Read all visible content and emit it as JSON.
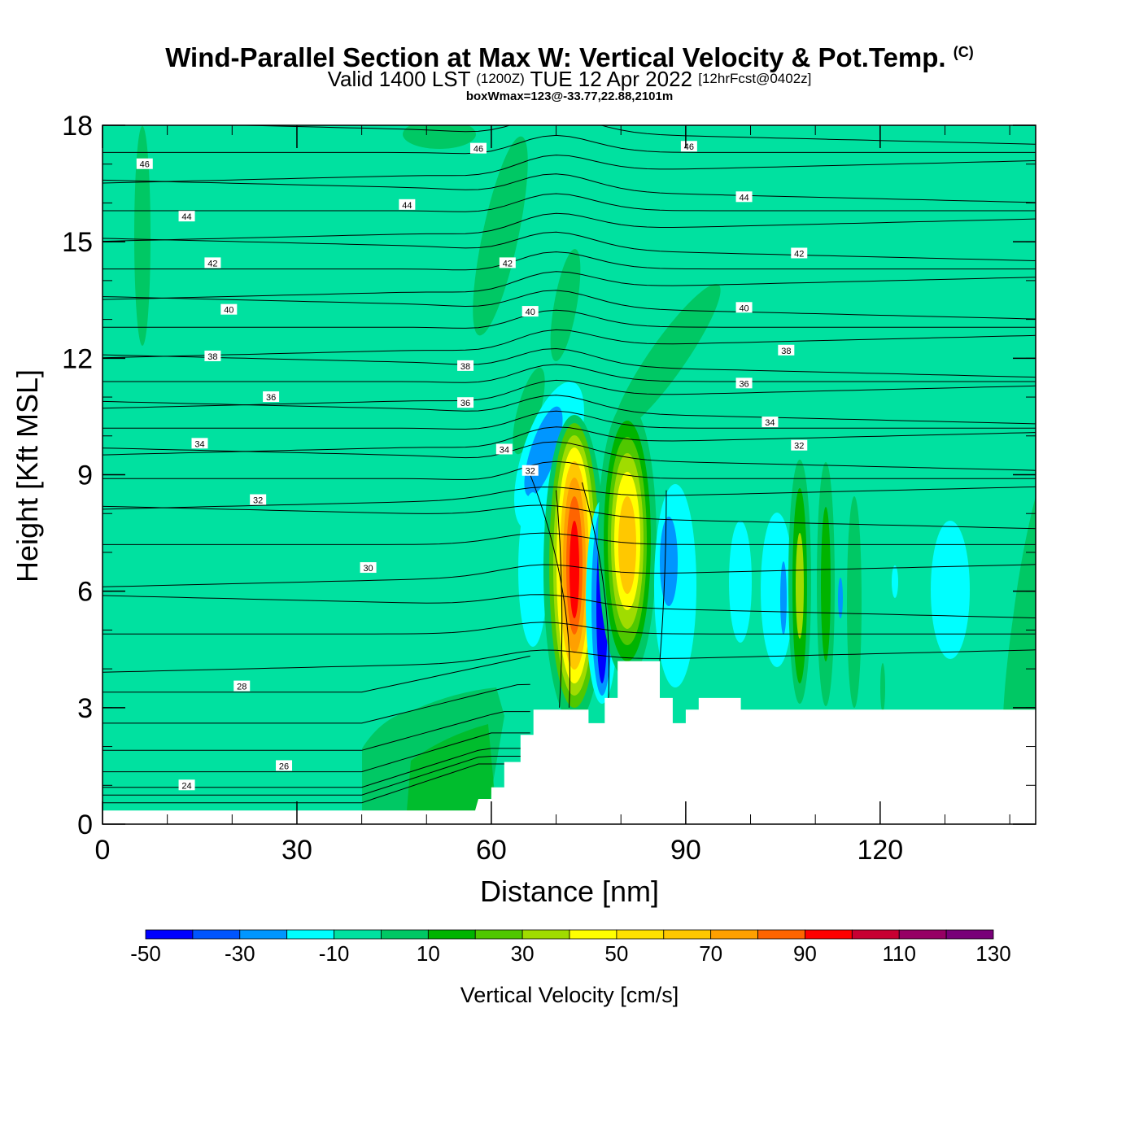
{
  "header": {
    "title": "Wind-Parallel Section at Max W: Vertical Velocity & Pot.Temp.",
    "copyright": "(C)",
    "valid_prefix": "Valid 1400 LST",
    "valid_utc": "(1200Z)",
    "valid_date": "TUE 12 Apr 2022",
    "forecast": "[12hrFcst@0402z]",
    "box_info": "boxWmax=123@-33.77,22.88,2101m"
  },
  "chart_data": {
    "type": "heatmap",
    "xlabel": "Distance [nm]",
    "ylabel": "Height [Kft MSL]",
    "xlim": [
      0,
      144
    ],
    "ylim": [
      0,
      18
    ],
    "x_ticks": [
      0,
      30,
      60,
      90,
      120
    ],
    "y_ticks": [
      0,
      3,
      6,
      9,
      12,
      15,
      18
    ],
    "background_color": "#00e1a0",
    "colorbar": {
      "title": "Vertical Velocity [cm/s]",
      "tick_labels": [
        -50,
        -30,
        -10,
        10,
        30,
        50,
        70,
        90,
        110,
        130
      ],
      "levels": [
        -50,
        -40,
        -30,
        -20,
        -10,
        0,
        10,
        20,
        30,
        40,
        50,
        60,
        70,
        80,
        90,
        100,
        110,
        120,
        130
      ],
      "colors": [
        "#0000ff",
        "#0055ff",
        "#0096ff",
        "#00ffff",
        "#00e1a0",
        "#00c864",
        "#00b400",
        "#50c800",
        "#a0dc00",
        "#ffff00",
        "#ffe100",
        "#ffc800",
        "#ffa000",
        "#ff6400",
        "#ff0000",
        "#c80032",
        "#960064",
        "#780078"
      ]
    },
    "terrain": [
      [
        0,
        0.35
      ],
      [
        57.5,
        0.35
      ],
      [
        58,
        0.65
      ],
      [
        60,
        0.65
      ],
      [
        60,
        0.95
      ],
      [
        62,
        0.95
      ],
      [
        62,
        1.6
      ],
      [
        64.5,
        1.6
      ],
      [
        64.5,
        2.3
      ],
      [
        66.5,
        2.3
      ],
      [
        66.5,
        2.95
      ],
      [
        75,
        2.95
      ],
      [
        75,
        2.6
      ],
      [
        77.5,
        2.6
      ],
      [
        77.5,
        3.25
      ],
      [
        79.5,
        3.25
      ],
      [
        79.5,
        4.2
      ],
      [
        86,
        4.2
      ],
      [
        86,
        3.25
      ],
      [
        88,
        3.25
      ],
      [
        88,
        2.6
      ],
      [
        90,
        2.6
      ],
      [
        90,
        2.95
      ],
      [
        92,
        2.95
      ],
      [
        92,
        3.25
      ],
      [
        98.5,
        3.25
      ],
      [
        98.5,
        2.95
      ],
      [
        144,
        2.95
      ]
    ],
    "theta_labels": [
      {
        "text": "46",
        "x": 6.5,
        "y": 17.0
      },
      {
        "text": "44",
        "x": 13,
        "y": 15.65
      },
      {
        "text": "42",
        "x": 17,
        "y": 14.45
      },
      {
        "text": "40",
        "x": 19.5,
        "y": 13.25
      },
      {
        "text": "38",
        "x": 17,
        "y": 12.05
      },
      {
        "text": "36",
        "x": 26,
        "y": 11.0
      },
      {
        "text": "34",
        "x": 15,
        "y": 9.8
      },
      {
        "text": "32",
        "x": 24,
        "y": 8.35
      },
      {
        "text": "30",
        "x": 41,
        "y": 6.6
      },
      {
        "text": "28",
        "x": 21.5,
        "y": 3.55
      },
      {
        "text": "26",
        "x": 28,
        "y": 1.5
      },
      {
        "text": "24",
        "x": 13,
        "y": 1.0
      },
      {
        "text": "46",
        "x": 58,
        "y": 17.4
      },
      {
        "text": "44",
        "x": 47,
        "y": 15.95
      },
      {
        "text": "42",
        "x": 62.5,
        "y": 14.45
      },
      {
        "text": "40",
        "x": 66,
        "y": 13.2
      },
      {
        "text": "38",
        "x": 56,
        "y": 11.8
      },
      {
        "text": "36",
        "x": 56,
        "y": 10.85
      },
      {
        "text": "34",
        "x": 62,
        "y": 9.65
      },
      {
        "text": "32",
        "x": 66,
        "y": 9.1
      },
      {
        "text": "46",
        "x": 90.5,
        "y": 17.45
      },
      {
        "text": "44",
        "x": 99,
        "y": 16.15
      },
      {
        "text": "42",
        "x": 107.5,
        "y": 14.7
      },
      {
        "text": "40",
        "x": 99,
        "y": 13.3
      },
      {
        "text": "38",
        "x": 105.5,
        "y": 12.2
      },
      {
        "text": "36",
        "x": 99,
        "y": 11.35
      },
      {
        "text": "34",
        "x": 103,
        "y": 10.35
      },
      {
        "text": "32",
        "x": 107.5,
        "y": 9.75
      }
    ]
  }
}
